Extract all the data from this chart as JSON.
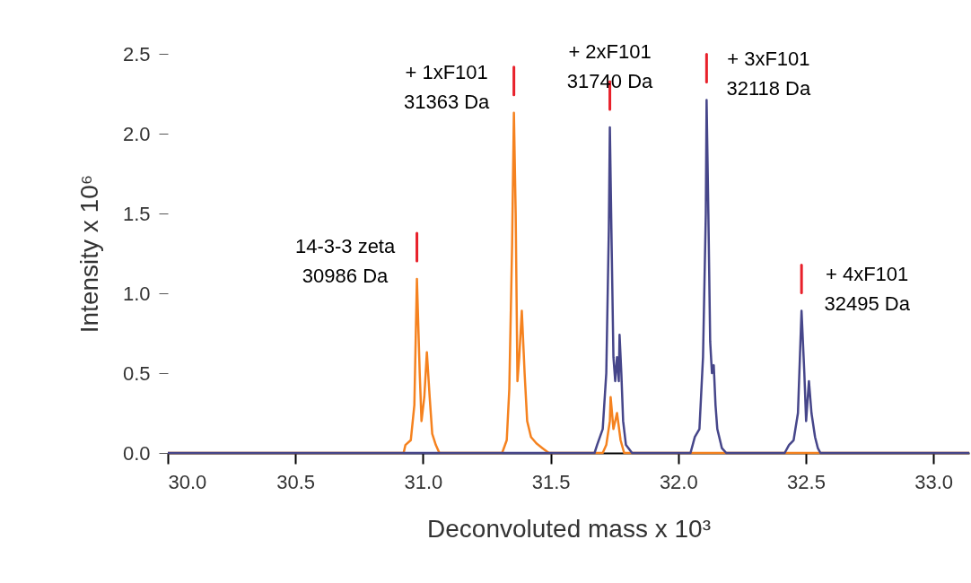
{
  "chart_data": {
    "type": "line",
    "xlabel": "Deconvoluted mass x 10³",
    "ylabel": "Intensity x 10⁶",
    "xlim": [
      30.0,
      33.14
    ],
    "ylim": [
      0,
      2.5
    ],
    "xticks": [
      {
        "value": 30,
        "label": "30.0"
      },
      {
        "value": 30.5,
        "label": "30.5"
      },
      {
        "value": 31,
        "label": "31.0"
      },
      {
        "value": 31.5,
        "label": "31.5"
      },
      {
        "value": 32,
        "label": "32.0"
      },
      {
        "value": 32.5,
        "label": "32.5"
      },
      {
        "value": 33,
        "label": "33.0"
      }
    ],
    "yticks": [
      {
        "value": 0,
        "label": "0.0"
      },
      0.5,
      {
        "value": 1,
        "label": "1.0"
      },
      1.5,
      {
        "value": 2,
        "label": "2.0"
      },
      2.5
    ],
    "grid": false,
    "series": [
      {
        "color": "#f5821f",
        "x": [
          30.0,
          30.924,
          30.931,
          30.952,
          30.966,
          30.976,
          30.987,
          30.994,
          31.005,
          31.015,
          31.026,
          31.036,
          31.05,
          31.064,
          31.31,
          31.328,
          31.338,
          31.349,
          31.356,
          31.363,
          31.37,
          31.377,
          31.387,
          31.398,
          31.408,
          31.423,
          31.444,
          31.468,
          31.493,
          31.704,
          31.718,
          31.732,
          31.735,
          31.746,
          31.76,
          31.774,
          31.788,
          33.14
        ],
        "values": [
          0,
          0,
          0.05,
          0.08,
          0.3,
          1.09,
          0.5,
          0.2,
          0.35,
          0.63,
          0.35,
          0.12,
          0.05,
          0,
          0,
          0.08,
          0.4,
          1.3,
          2.13,
          1.5,
          0.45,
          0.6,
          0.89,
          0.5,
          0.2,
          0.1,
          0.06,
          0.03,
          0,
          0,
          0.05,
          0.2,
          0.35,
          0.15,
          0.25,
          0.08,
          0,
          0
        ]
      },
      {
        "color": "#46468a",
        "x": [
          30.0,
          31.672,
          31.682,
          31.704,
          31.718,
          31.728,
          31.732,
          31.739,
          31.746,
          31.753,
          31.76,
          31.767,
          31.77,
          31.777,
          31.784,
          31.795,
          31.819,
          32.048,
          32.065,
          32.083,
          32.097,
          32.108,
          32.111,
          32.118,
          32.125,
          32.132,
          32.139,
          32.146,
          32.153,
          32.171,
          32.188,
          32.417,
          32.434,
          32.452,
          32.469,
          32.483,
          32.494,
          32.501,
          32.512,
          32.522,
          32.536,
          32.547,
          32.557,
          33.14
        ],
        "values": [
          0,
          0,
          0.05,
          0.15,
          0.5,
          1.4,
          2.04,
          1.3,
          0.6,
          0.45,
          0.6,
          0.45,
          0.74,
          0.5,
          0.2,
          0.05,
          0,
          0,
          0.1,
          0.15,
          0.6,
          1.5,
          2.21,
          1.5,
          0.7,
          0.5,
          0.55,
          0.3,
          0.15,
          0.03,
          0,
          0,
          0.05,
          0.08,
          0.25,
          0.89,
          0.5,
          0.2,
          0.45,
          0.25,
          0.1,
          0.03,
          0,
          0
        ]
      }
    ],
    "annotations": [
      {
        "text": "14-3-3 zeta\n30986 Da",
        "x": 30.976,
        "y": 1.09
      },
      {
        "text": "+ 1xF101\n31363 Da",
        "x": 31.356,
        "y": 2.13
      },
      {
        "text": "+ 2xF101\n31740 Da",
        "x": 31.732,
        "y": 2.04
      },
      {
        "text": "+ 3xF101\n32118 Da",
        "x": 32.111,
        "y": 2.21
      },
      {
        "text": "+ 4xF101\n32495 Da",
        "x": 32.483,
        "y": 0.89
      }
    ]
  }
}
